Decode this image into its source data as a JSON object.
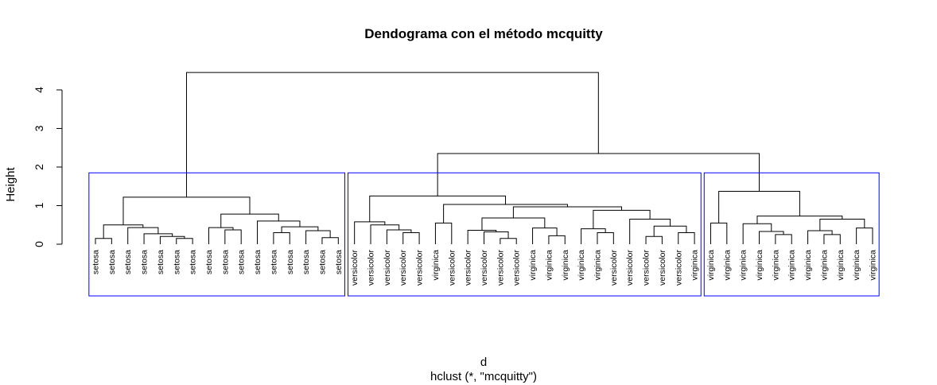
{
  "chart_data": {
    "type": "dendrogram",
    "title": "Dendograma con el método  mcquitty",
    "xlabel": "d",
    "sublabel": "hclust (*, \"mcquitty\")",
    "ylabel": "Height",
    "ylim": [
      0,
      4.6
    ],
    "yticks": [
      0,
      1,
      2,
      3,
      4
    ],
    "root_height": 4.45,
    "cut_height": 1.85,
    "cluster_box_color": "#0000ff",
    "leaves": [
      "setosa",
      "setosa",
      "setosa",
      "setosa",
      "setosa",
      "setosa",
      "setosa",
      "setosa",
      "setosa",
      "setosa",
      "setosa",
      "setosa",
      "setosa",
      "setosa",
      "setosa",
      "setosa",
      "versicolor",
      "versicolor",
      "versicolor",
      "versicolor",
      "versicolor",
      "virginica",
      "versicolor",
      "versicolor",
      "versicolor",
      "versicolor",
      "versicolor",
      "virginica",
      "virginica",
      "virginica",
      "virginica",
      "virginica",
      "versicolor",
      "versicolor",
      "versicolor",
      "versicolor",
      "versicolor",
      "virginica",
      "virginica",
      "virginica",
      "virginica",
      "virginica",
      "virginica",
      "virginica",
      "virginica",
      "virginica",
      "virginica",
      "virginica",
      "virginica"
    ],
    "merges": [
      {
        "a": 0,
        "b": 1,
        "h": 0.15
      },
      {
        "a": 5,
        "b": 6,
        "h": 0.15
      },
      {
        "a": 4,
        "b": "m1",
        "h": 0.2
      },
      {
        "a": 3,
        "b": "m2",
        "h": 0.27
      },
      {
        "a": 2,
        "b": "m3",
        "h": 0.43
      },
      {
        "a": "m0",
        "b": "m4",
        "h": 0.5
      },
      {
        "a": 8,
        "b": 9,
        "h": 0.37
      },
      {
        "a": 7,
        "b": "m6",
        "h": 0.43
      },
      {
        "a": 11,
        "b": 12,
        "h": 0.3
      },
      {
        "a": 14,
        "b": 15,
        "h": 0.17
      },
      {
        "a": 13,
        "b": "m9",
        "h": 0.35
      },
      {
        "a": "m8",
        "b": "m10",
        "h": 0.45
      },
      {
        "a": 10,
        "b": "m11",
        "h": 0.6
      },
      {
        "a": "m7",
        "b": "m12",
        "h": 0.78
      },
      {
        "a": "m5",
        "b": "m13",
        "h": 1.22
      },
      {
        "a": 19,
        "b": 20,
        "h": 0.3
      },
      {
        "a": 18,
        "b": "m15",
        "h": 0.37
      },
      {
        "a": 17,
        "b": "m16",
        "h": 0.5
      },
      {
        "a": 16,
        "b": "m17",
        "h": 0.58
      },
      {
        "a": 21,
        "b": 22,
        "h": 0.55
      },
      {
        "a": 25,
        "b": 26,
        "h": 0.15
      },
      {
        "a": 24,
        "b": "m20",
        "h": 0.32
      },
      {
        "a": 23,
        "b": "m21",
        "h": 0.36
      },
      {
        "a": 28,
        "b": 29,
        "h": 0.22
      },
      {
        "a": 27,
        "b": "m23",
        "h": 0.42
      },
      {
        "a": "m22",
        "b": "m24",
        "h": 0.68
      },
      {
        "a": 31,
        "b": 32,
        "h": 0.3
      },
      {
        "a": 30,
        "b": "m26",
        "h": 0.4
      },
      {
        "a": 34,
        "b": 35,
        "h": 0.2
      },
      {
        "a": 36,
        "b": 37,
        "h": 0.3
      },
      {
        "a": "m28",
        "b": "m29",
        "h": 0.47
      },
      {
        "a": 33,
        "b": "m30",
        "h": 0.65
      },
      {
        "a": "m27",
        "b": "m31",
        "h": 0.88
      },
      {
        "a": "m25",
        "b": "m32",
        "h": 0.97
      },
      {
        "a": "m19",
        "b": "m33",
        "h": 1.03
      },
      {
        "a": "m18",
        "b": "m34",
        "h": 1.25
      },
      {
        "a": 38,
        "b": 39,
        "h": 0.55
      },
      {
        "a": 42,
        "b": 43,
        "h": 0.25
      },
      {
        "a": 41,
        "b": "m37",
        "h": 0.33
      },
      {
        "a": 40,
        "b": "m38",
        "h": 0.53
      },
      {
        "a": 45,
        "b": 46,
        "h": 0.25
      },
      {
        "a": 44,
        "b": "m40",
        "h": 0.35
      },
      {
        "a": 47,
        "b": 48,
        "h": 0.42
      },
      {
        "a": "m41",
        "b": "m42",
        "h": 0.65
      },
      {
        "a": "m39",
        "b": "m43",
        "h": 0.73
      },
      {
        "a": "m36",
        "b": "m44",
        "h": 1.37
      },
      {
        "a": "m35",
        "b": "m45",
        "h": 2.35
      },
      {
        "a": "m14",
        "b": "m46",
        "h": 4.45
      }
    ],
    "clusters": [
      {
        "first": 0,
        "last": 15
      },
      {
        "first": 16,
        "last": 37
      },
      {
        "first": 38,
        "last": 48
      }
    ]
  }
}
